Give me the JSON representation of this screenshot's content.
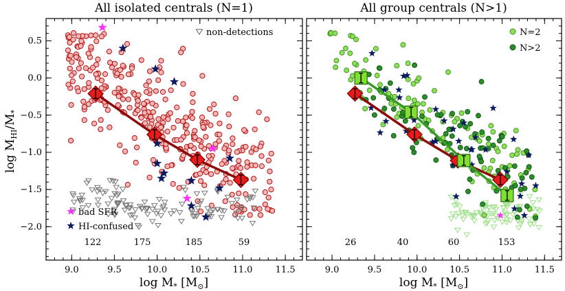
{
  "ylabel": "log M_HI/M_*",
  "panels": [
    {
      "title": "All isolated centrals (N=1)",
      "xlabel": "log M_* [M_sun]",
      "xlim": [
        8.7,
        11.7
      ],
      "ylim": [
        -2.45,
        0.8
      ],
      "xticks": [
        "9.0",
        "9.5",
        "10.0",
        "10.5",
        "11.0",
        "11.5"
      ],
      "yticks": [
        "0.5",
        "0.0",
        "−0.5",
        "−1.0",
        "−1.5",
        "−2.0"
      ],
      "legend": {
        "nondetections": "non-detections",
        "bad_sfr": "bad SFR",
        "hi_confused": "HI-confused"
      },
      "counts": [
        "122",
        "175",
        "185",
        "59"
      ],
      "count_x": [
        9.12,
        10.03,
        10.89,
        11.05
      ],
      "trend": [
        {
          "x": 9.28,
          "y": -0.21
        },
        {
          "x": 9.97,
          "y": -0.76
        },
        {
          "x": 10.47,
          "y": -1.1
        },
        {
          "x": 10.98,
          "y": -1.37
        }
      ]
    },
    {
      "title": "All group centrals (N>1)",
      "xlabel": "log M_* [M_sun]",
      "xlim": [
        8.7,
        11.7
      ],
      "ylim": [
        -2.45,
        0.8
      ],
      "xticks": [
        "9.0",
        "9.5",
        "10.0",
        "10.5",
        "11.0",
        "11.5"
      ],
      "legend": {
        "n2": "N=2",
        "n_gt2": "N>2"
      },
      "counts": [
        "26",
        "40",
        "60",
        "153"
      ],
      "trend_red": [
        {
          "x": 9.27,
          "y": -0.21
        },
        {
          "x": 9.97,
          "y": -0.76
        },
        {
          "x": 10.48,
          "y": -1.11
        },
        {
          "x": 10.98,
          "y": -1.37
        }
      ],
      "trend_green": [
        {
          "x": 9.34,
          "y": 0.0
        },
        {
          "x": 9.93,
          "y": -0.46
        },
        {
          "x": 10.55,
          "y": -1.11
        },
        {
          "x": 11.06,
          "y": -1.58
        }
      ]
    }
  ],
  "chart_data": [
    {
      "type": "scatter",
      "title": "All isolated centrals (N=1)",
      "xlabel": "log M_* [M_sun]",
      "ylabel": "log M_HI/M_*",
      "xlim": [
        8.7,
        11.7
      ],
      "ylim": [
        -2.45,
        0.8
      ],
      "series": [
        {
          "name": "detections",
          "n_approx": 360
        },
        {
          "name": "non-detections",
          "n_approx": 120
        },
        {
          "name": "bad SFR",
          "points": [
            [
              9.36,
              0.68
            ],
            [
              10.65,
              -0.95
            ],
            [
              10.35,
              -1.62
            ]
          ]
        },
        {
          "name": "HI-confused",
          "points": [
            [
              9.6,
              0.4
            ],
            [
              9.98,
              0.12
            ],
            [
              10.2,
              -0.05
            ],
            [
              10.0,
              -0.88
            ],
            [
              10.0,
              -1.15
            ],
            [
              10.08,
              -1.28
            ],
            [
              10.05,
              -1.35
            ],
            [
              10.4,
              -1.38
            ],
            [
              10.4,
              -1.72
            ],
            [
              10.57,
              -1.87
            ],
            [
              10.85,
              -1.08
            ],
            [
              10.73,
              -1.48
            ]
          ]
        },
        {
          "name": "median trend",
          "x": [
            9.28,
            9.97,
            10.47,
            10.98
          ],
          "y": [
            -0.21,
            -0.76,
            -1.1,
            -1.37
          ]
        }
      ],
      "counts": [
        122,
        175,
        185,
        59
      ]
    },
    {
      "type": "scatter",
      "title": "All group centrals (N>1)",
      "xlabel": "log M_* [M_sun]",
      "xlim": [
        8.7,
        11.7
      ],
      "ylim": [
        -2.45,
        0.8
      ],
      "series": [
        {
          "name": "N=2",
          "n_approx": 110
        },
        {
          "name": "N>2",
          "n_approx": 90
        },
        {
          "name": "HI-confused",
          "n_approx": 35
        },
        {
          "name": "N=1 trend",
          "x": [
            9.27,
            9.97,
            10.48,
            10.98
          ],
          "y": [
            -0.21,
            -0.76,
            -1.11,
            -1.37
          ]
        },
        {
          "name": "N>1 trend",
          "x": [
            9.34,
            9.93,
            10.55,
            11.06
          ],
          "y": [
            0.0,
            -0.46,
            -1.11,
            -1.58
          ]
        }
      ],
      "counts": [
        26,
        40,
        60,
        153
      ]
    }
  ]
}
